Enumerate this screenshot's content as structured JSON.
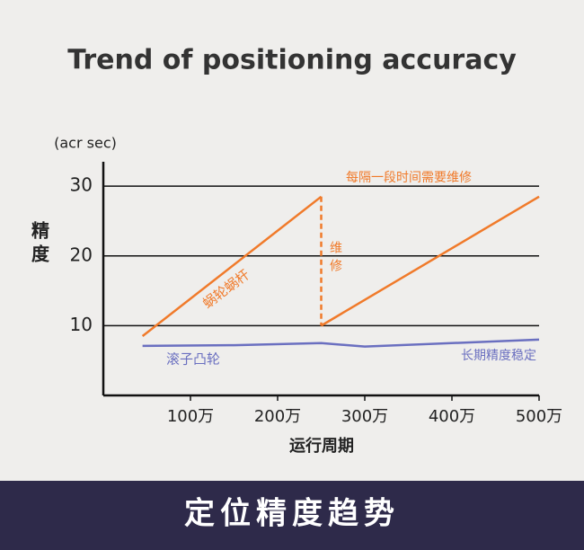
{
  "chart_data": {
    "type": "line",
    "title": "Trend of positioning accuracy",
    "y_unit": "(acr sec)",
    "ylabel": "精度",
    "xlabel": "运行周期",
    "banner": "定位精度趋势",
    "xlim": [
      0,
      500
    ],
    "ylim": [
      0,
      33.5
    ],
    "xticks": [
      {
        "value": 100,
        "label": "100万"
      },
      {
        "value": 200,
        "label": "200万"
      },
      {
        "value": 300,
        "label": "300万"
      },
      {
        "value": 400,
        "label": "400万"
      },
      {
        "value": 500,
        "label": "500万"
      }
    ],
    "yticks": [
      10,
      20,
      30
    ],
    "grid": true,
    "series": [
      {
        "name": "蜗轮蜗杆",
        "color": "#f07a2a",
        "x": [
          45,
          250,
          250,
          500
        ],
        "values": [
          8.5,
          28.5,
          10,
          28.5
        ]
      },
      {
        "name": "滚子凸轮",
        "color": "#6a6fc0",
        "x": [
          45,
          150,
          250,
          300,
          500
        ],
        "values": [
          7.1,
          7.2,
          7.5,
          7.0,
          8.0
        ]
      }
    ],
    "annotations": [
      "每隔一段时间需要维修",
      "维修",
      "长期精度稳定"
    ]
  }
}
